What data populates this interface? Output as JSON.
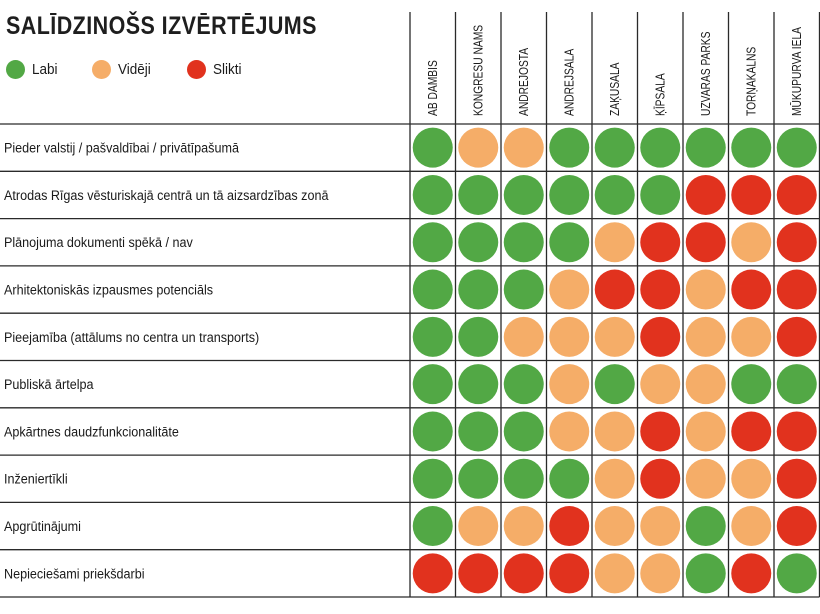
{
  "header": {
    "title": "SALĪDZINOŠS IZVĒRTĒJUMS"
  },
  "legend": [
    {
      "key": "G",
      "label": "Labi",
      "color": "#52a845"
    },
    {
      "key": "O",
      "label": "Vidēji",
      "color": "#f5ad68"
    },
    {
      "key": "R",
      "label": "Slikti",
      "color": "#e1321e"
    }
  ],
  "chart_data": {
    "type": "table",
    "columns": [
      "AB DAMBIS",
      "KONGRESU NAMS",
      "ANDREJOSTA",
      "ANDREJSALA",
      "ZAĶUSALA",
      "ĶĪPSALA",
      "UZVARAS PARKS",
      "TORŅAKALNS",
      "MŪKUPURVA IELA"
    ],
    "rows": [
      {
        "label": "Pieder valstij / pašvaldībai / privātīpašumā",
        "values": [
          "G",
          "O",
          "O",
          "G",
          "G",
          "G",
          "G",
          "G",
          "G"
        ]
      },
      {
        "label": "Atrodas Rīgas vēsturiskajā centrā un tā aizsardzības zonā",
        "values": [
          "G",
          "G",
          "G",
          "G",
          "G",
          "G",
          "R",
          "R",
          "R"
        ]
      },
      {
        "label": "Plānojuma dokumenti spēkā / nav",
        "values": [
          "G",
          "G",
          "G",
          "G",
          "O",
          "R",
          "R",
          "O",
          "R"
        ]
      },
      {
        "label": "Arhitektoniskās izpausmes potenciāls",
        "values": [
          "G",
          "G",
          "G",
          "O",
          "R",
          "R",
          "O",
          "R",
          "R"
        ]
      },
      {
        "label": "Pieejamība (attālums no centra un transports)",
        "values": [
          "G",
          "G",
          "O",
          "O",
          "O",
          "R",
          "O",
          "O",
          "R"
        ]
      },
      {
        "label": "Publiskā ārtelpa",
        "values": [
          "G",
          "G",
          "G",
          "O",
          "G",
          "O",
          "O",
          "G",
          "G"
        ]
      },
      {
        "label": "Apkārtnes daudzfunkcionalitāte",
        "values": [
          "G",
          "G",
          "G",
          "O",
          "O",
          "R",
          "O",
          "R",
          "R"
        ]
      },
      {
        "label": "Inženiertīkli",
        "values": [
          "G",
          "G",
          "G",
          "G",
          "O",
          "R",
          "O",
          "O",
          "R"
        ]
      },
      {
        "label": "Apgrūtinājumi",
        "values": [
          "G",
          "O",
          "O",
          "R",
          "O",
          "O",
          "G",
          "O",
          "R"
        ]
      },
      {
        "label": "Nepieciešami priekšdarbi",
        "values": [
          "R",
          "R",
          "R",
          "R",
          "O",
          "O",
          "G",
          "R",
          "G"
        ]
      }
    ]
  }
}
